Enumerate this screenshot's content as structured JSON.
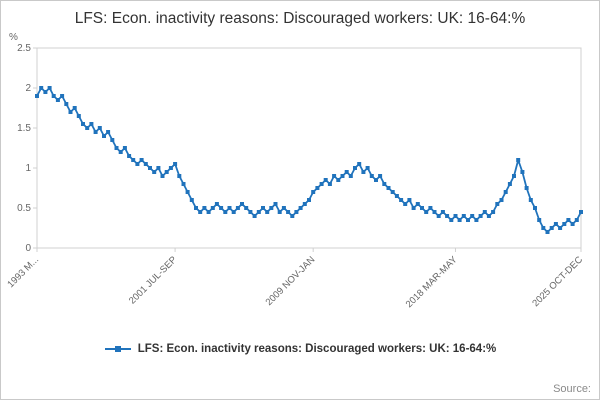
{
  "page": {
    "title": "LFS: Econ. inactivity reasons: Discouraged workers: UK: 16-64:%",
    "source_label": "Source:"
  },
  "legend": {
    "label": "LFS: Econ. inactivity reasons: Discouraged workers: UK: 16-64:%"
  },
  "chart_data": {
    "type": "line",
    "title": "LFS: Econ. inactivity reasons: Discouraged workers: UK: 16-64:%",
    "xlabel": "",
    "ylabel": "%",
    "ylim": [
      0,
      2.5
    ],
    "y_ticks": [
      0,
      0.5,
      1,
      1.5,
      2,
      2.5
    ],
    "y_tick_labels": [
      "0",
      "0.5",
      "1",
      "1.5",
      "2",
      "2.5"
    ],
    "x_ticks": [
      {
        "index": 0,
        "label": "1993 M..."
      },
      {
        "index": 33,
        "label": "2001 JUL-SEP"
      },
      {
        "index": 66,
        "label": "2009 NOV-JAN"
      },
      {
        "index": 100,
        "label": "2018 MAR-MAY"
      },
      {
        "index": 130,
        "label": "2025 OCT-DEC"
      }
    ],
    "grid": false,
    "legend_position": "bottom",
    "line_color": "#2073bc",
    "axis_color": "#d0d0d0",
    "tick_text_color": "#666666",
    "series": [
      {
        "name": "LFS: Econ. inactivity reasons: Discouraged workers: UK: 16-64:%",
        "values": [
          1.9,
          2.0,
          1.95,
          2.0,
          1.9,
          1.85,
          1.9,
          1.8,
          1.7,
          1.75,
          1.65,
          1.55,
          1.5,
          1.55,
          1.45,
          1.5,
          1.4,
          1.45,
          1.35,
          1.25,
          1.2,
          1.25,
          1.15,
          1.1,
          1.05,
          1.1,
          1.05,
          1.0,
          0.95,
          1.0,
          0.9,
          0.95,
          1.0,
          1.05,
          0.9,
          0.8,
          0.7,
          0.6,
          0.5,
          0.45,
          0.5,
          0.45,
          0.5,
          0.55,
          0.5,
          0.45,
          0.5,
          0.45,
          0.5,
          0.55,
          0.5,
          0.45,
          0.4,
          0.45,
          0.5,
          0.45,
          0.5,
          0.55,
          0.45,
          0.5,
          0.45,
          0.4,
          0.45,
          0.5,
          0.55,
          0.6,
          0.7,
          0.75,
          0.8,
          0.85,
          0.8,
          0.9,
          0.85,
          0.9,
          0.95,
          0.9,
          1.0,
          1.05,
          0.95,
          1.0,
          0.9,
          0.85,
          0.9,
          0.8,
          0.75,
          0.7,
          0.65,
          0.6,
          0.55,
          0.6,
          0.5,
          0.55,
          0.5,
          0.45,
          0.5,
          0.45,
          0.4,
          0.45,
          0.4,
          0.35,
          0.4,
          0.35,
          0.4,
          0.35,
          0.4,
          0.35,
          0.4,
          0.45,
          0.4,
          0.45,
          0.55,
          0.6,
          0.7,
          0.8,
          0.9,
          1.1,
          0.95,
          0.75,
          0.6,
          0.5,
          0.35,
          0.25,
          0.2,
          0.25,
          0.3,
          0.25,
          0.3,
          0.35,
          0.3,
          0.35,
          0.45
        ]
      }
    ]
  }
}
